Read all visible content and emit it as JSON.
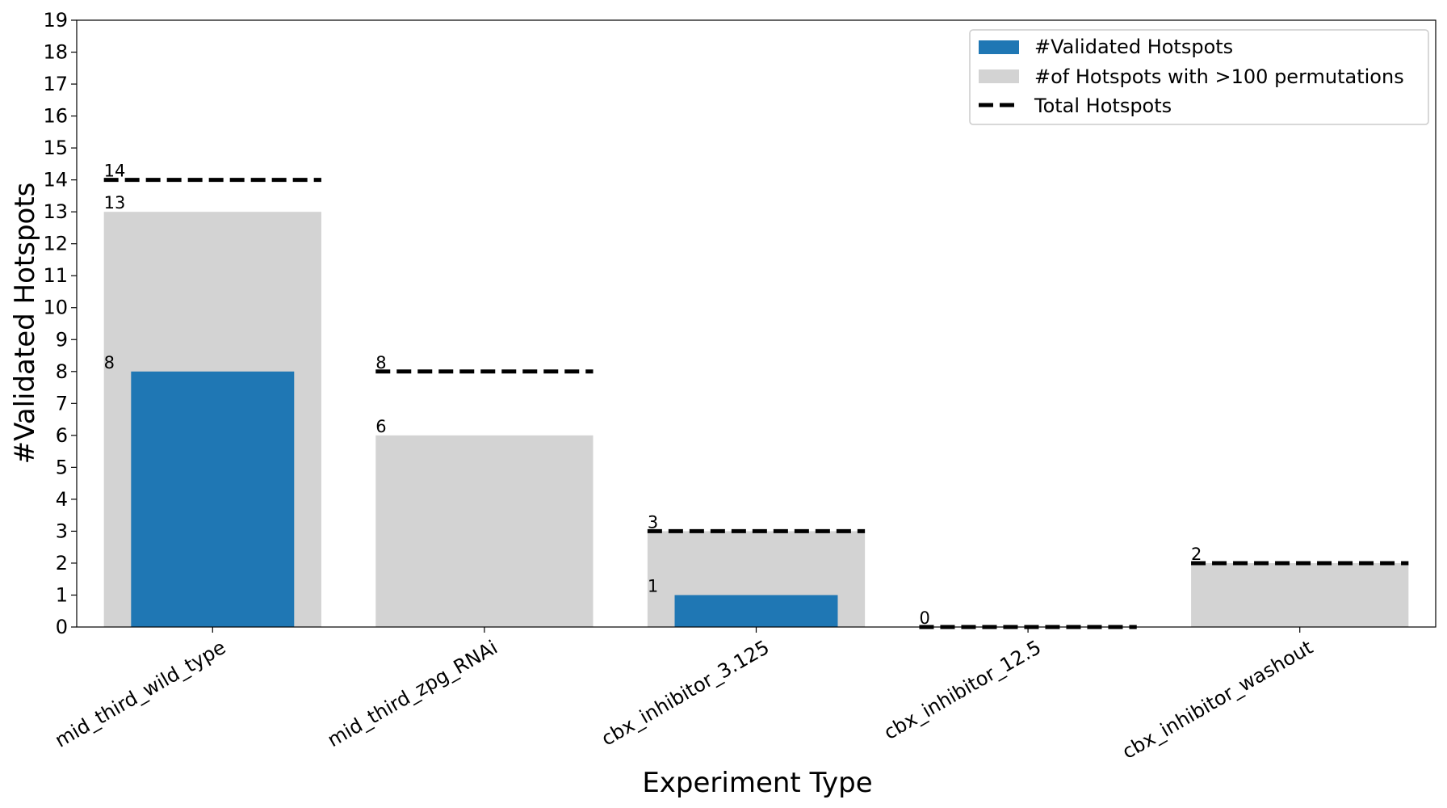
{
  "chart_data": {
    "type": "bar",
    "title": "",
    "xlabel": "Experiment Type",
    "ylabel": "#Validated Hotspots",
    "categories": [
      "mid_third_wild_type",
      "mid_third_zpg_RNAi",
      "cbx_inhibitor_3.125",
      "cbx_inhibitor_12.5",
      "cbx_inhibitor_washout"
    ],
    "series": [
      {
        "name": "#Validated Hotspots",
        "values": [
          8,
          0,
          1,
          0,
          0
        ],
        "color": "#1f77b4"
      },
      {
        "name": "#of Hotspots with >100 permutations",
        "values": [
          13,
          6,
          3,
          0,
          2
        ],
        "color": "#d3d3d3"
      },
      {
        "name": "Total Hotspots",
        "values": [
          14,
          8,
          3,
          0,
          2
        ],
        "color": "#000000",
        "style": "dashed"
      }
    ],
    "data_labels": {
      "validated": [
        "8",
        "",
        "1",
        "",
        ""
      ],
      "permutations": [
        "13",
        "6",
        "",
        "",
        ""
      ],
      "total": [
        "14",
        "8",
        "3",
        "0",
        "2"
      ]
    },
    "yticks": [
      "0",
      "1",
      "2",
      "3",
      "4",
      "5",
      "6",
      "7",
      "8",
      "9",
      "10",
      "11",
      "12",
      "13",
      "14",
      "15",
      "16",
      "17",
      "18",
      "19"
    ],
    "ylim": [
      0,
      19
    ],
    "legend": {
      "placement": "top-right",
      "entries": [
        "#Validated Hotspots",
        "#of Hotspots with >100 permutations",
        "Total Hotspots"
      ]
    },
    "grid": false
  }
}
